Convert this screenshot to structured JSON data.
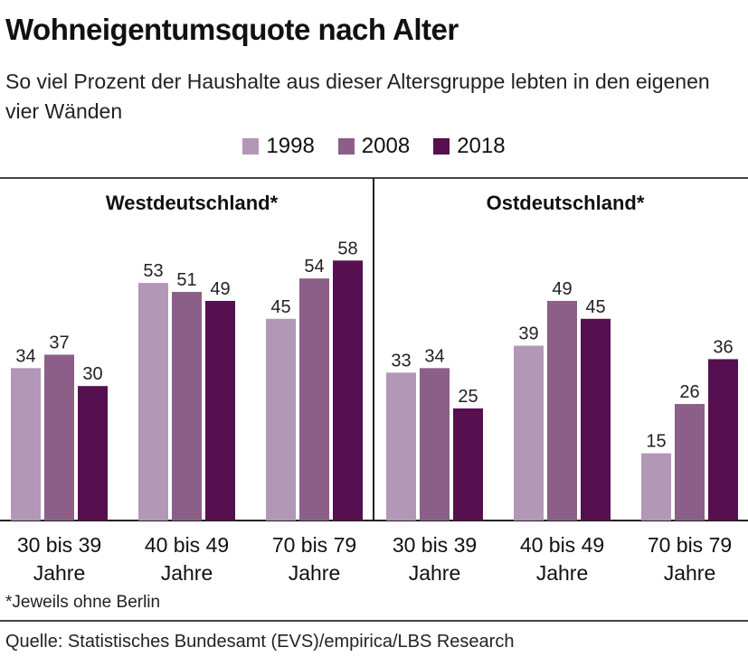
{
  "header": {
    "title": "Wohneigentumsquote nach Alter",
    "subtitle": "So viel Prozent der Haushalte aus dieser Altersgruppe lebten in den eigenen vier Wänden"
  },
  "colors": {
    "1998": "#b397b6",
    "2008": "#8b5f87",
    "2018": "#56104f"
  },
  "footnote": "*Jeweils ohne Berlin",
  "source": "Quelle: Statistisches Bundesamt (EVS)/empirica/LBS Research",
  "chart_data": [
    {
      "type": "bar",
      "title": "Westdeutschland*",
      "categories": [
        "30 bis 39 Jahre",
        "40 bis 49 Jahre",
        "70 bis 79 Jahre"
      ],
      "series": [
        {
          "name": "1998",
          "values": [
            34,
            53,
            45
          ]
        },
        {
          "name": "2008",
          "values": [
            37,
            51,
            54
          ]
        },
        {
          "name": "2018",
          "values": [
            30,
            49,
            58
          ]
        }
      ],
      "ylim": [
        0,
        60
      ],
      "legend": "top-center",
      "grid": false
    },
    {
      "type": "bar",
      "title": "Ostdeutschland*",
      "categories": [
        "30 bis 39 Jahre",
        "40 bis 49 Jahre",
        "70 bis 79 Jahre"
      ],
      "series": [
        {
          "name": "1998",
          "values": [
            33,
            39,
            15
          ]
        },
        {
          "name": "2008",
          "values": [
            34,
            49,
            26
          ]
        },
        {
          "name": "2018",
          "values": [
            25,
            45,
            36
          ]
        }
      ],
      "ylim": [
        0,
        60
      ],
      "legend": "top-center",
      "grid": false
    }
  ]
}
